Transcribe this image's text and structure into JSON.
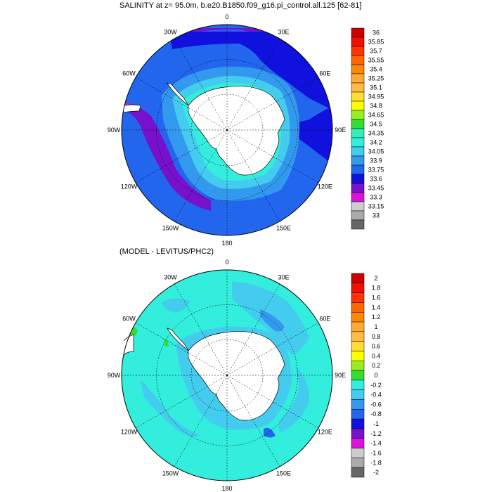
{
  "panel_top": {
    "title": "SALINITY at z=  95.0m, b.e20.B1850.f09_g16.pi_control.all.125 [62-81]",
    "colorbar": {
      "labels": [
        "36",
        "35.85",
        "35.7",
        "35.55",
        "35.4",
        "35.25",
        "35.1",
        "34.95",
        "34.8",
        "34.65",
        "34.5",
        "34.35",
        "34.2",
        "34.05",
        "33.9",
        "33.75",
        "33.6",
        "33.45",
        "33.3",
        "33.15",
        "33"
      ],
      "colors": [
        "#cc0000",
        "#ee1100",
        "#ff3300",
        "#ff6600",
        "#ff8800",
        "#ffaa33",
        "#ffbb44",
        "#ffdd33",
        "#ffff00",
        "#99ee22",
        "#33dd33",
        "#33eebb",
        "#33eedd",
        "#44ccee",
        "#3399ee",
        "#2266ee",
        "#1111dd",
        "#7711cc",
        "#dd11dd",
        "#cccccc",
        "#aaaaaa",
        "#666666"
      ]
    }
  },
  "panel_bottom": {
    "title": "(MODEL - LEVITUS/PHC2)",
    "colorbar": {
      "labels": [
        "2",
        "1.8",
        "1.6",
        "1.4",
        "1.2",
        "1",
        "0.8",
        "0.6",
        "0.4",
        "0.2",
        "0",
        "-0.2",
        "-0.4",
        "-0.6",
        "-0.8",
        "-1",
        "-1.2",
        "-1.4",
        "-1.6",
        "-1.8",
        "-2"
      ],
      "colors": [
        "#cc0000",
        "#ee1100",
        "#ff3300",
        "#ff6600",
        "#ff8800",
        "#ffaa33",
        "#ffbb44",
        "#ffdd33",
        "#ffff00",
        "#99ee22",
        "#33dd33",
        "#33eedd",
        "#44ccee",
        "#3399ee",
        "#2266ee",
        "#1111dd",
        "#7711cc",
        "#dd11dd",
        "#cccccc",
        "#aaaaaa",
        "#666666"
      ]
    }
  },
  "longitude_labels": [
    "0",
    "30E",
    "60E",
    "90E",
    "120E",
    "150E",
    "180",
    "150W",
    "120W",
    "90W",
    "60W",
    "30W"
  ],
  "colors": {
    "land": "#ffffff",
    "outline": "#000000",
    "grid": "#000000"
  }
}
